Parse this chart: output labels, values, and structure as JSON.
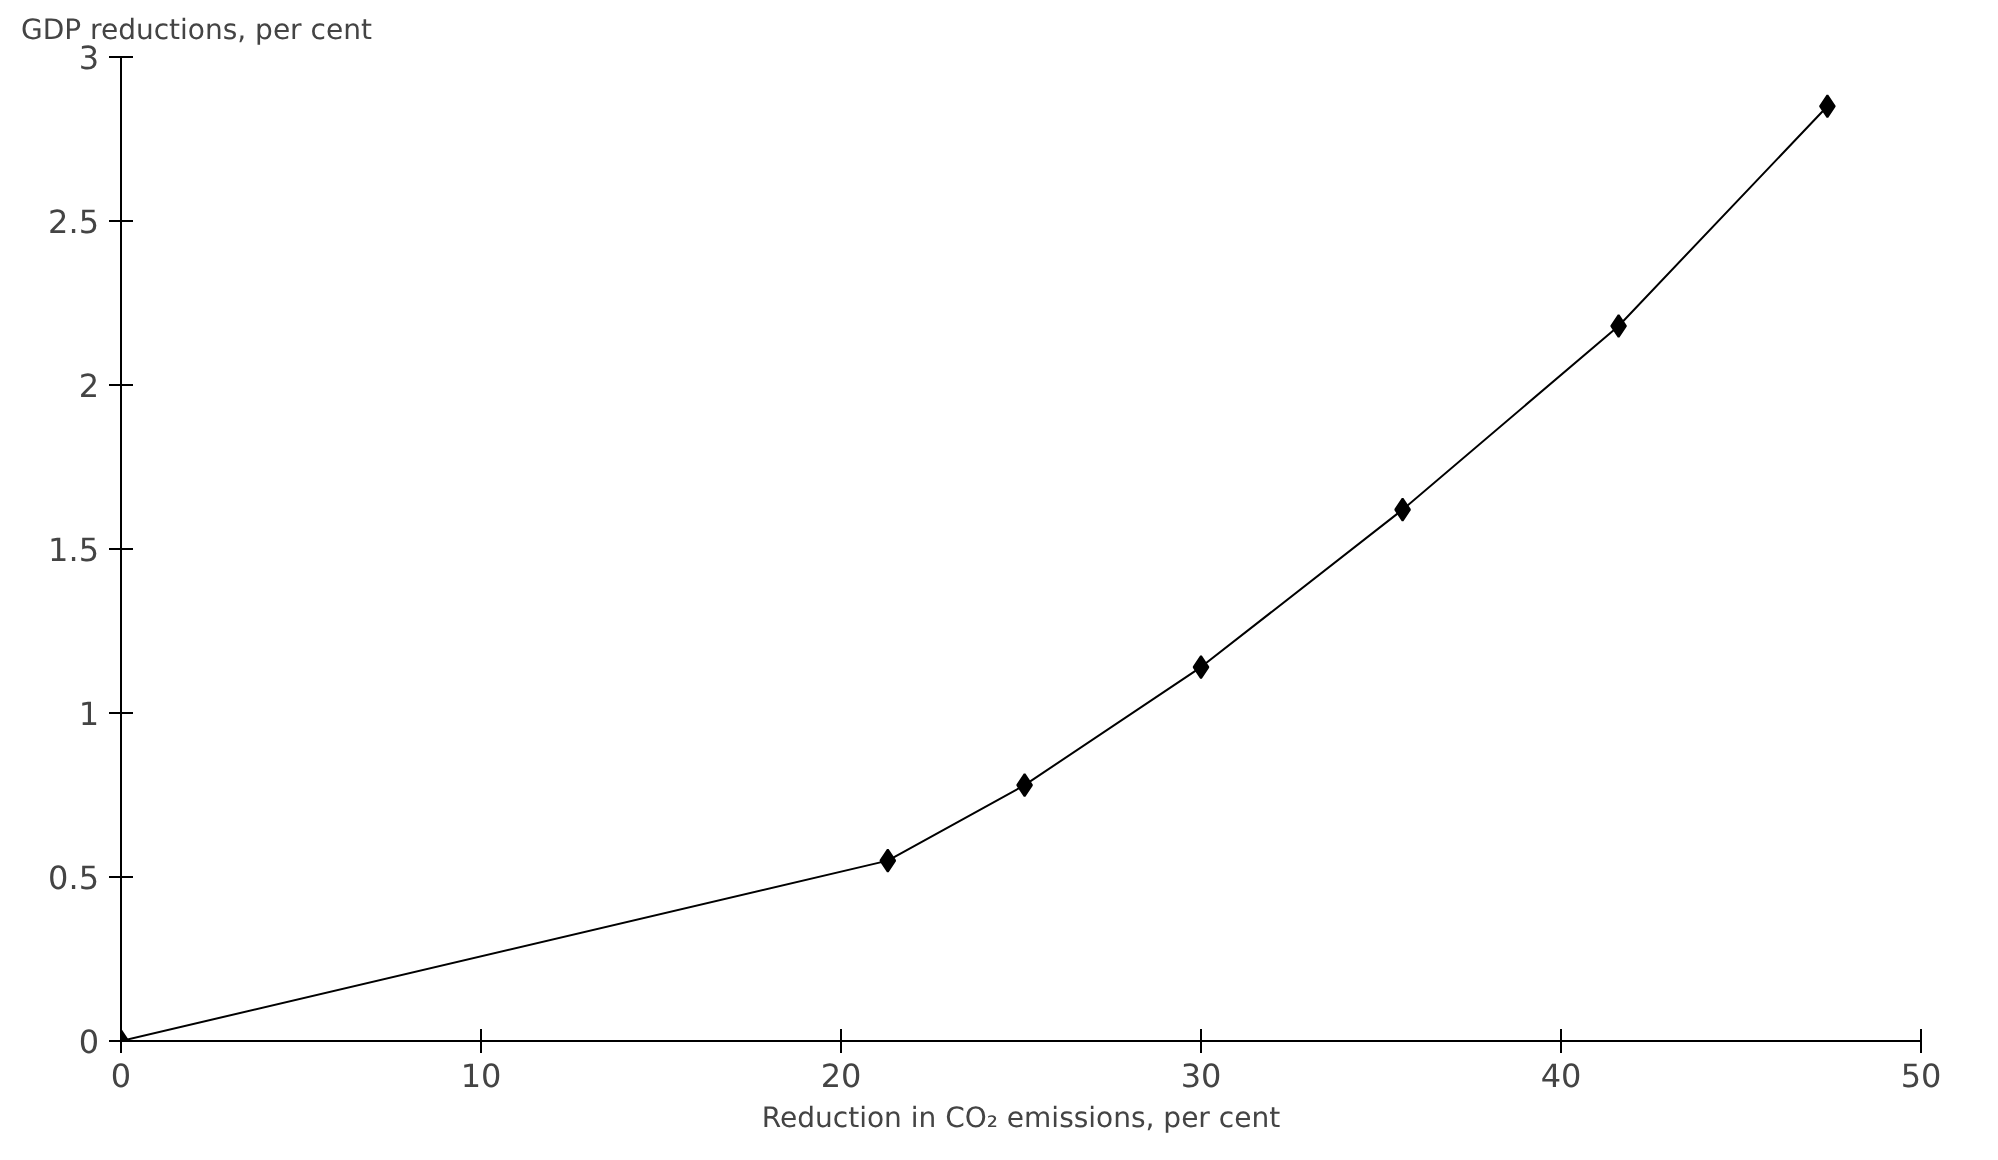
{
  "chart_data": {
    "type": "line",
    "ylabel": "GDP reductions, per cent",
    "xlabel": "Reduction in CO₂ emissions, per cent",
    "x": [
      0,
      21.3,
      25.1,
      30.0,
      35.6,
      41.6,
      47.4
    ],
    "series": [
      {
        "color": "#000000",
        "values": [
          0,
          0.55,
          0.78,
          1.14,
          1.62,
          2.18,
          2.85
        ]
      }
    ],
    "xlim": [
      0,
      50
    ],
    "xticks": [
      0,
      10,
      20,
      30,
      40,
      50
    ],
    "ylim": [
      0,
      3
    ],
    "yticks": [
      0,
      0.5,
      1,
      1.5,
      2,
      2.5,
      3
    ],
    "grid": false,
    "marker": "diamond",
    "line_style": "solid"
  }
}
